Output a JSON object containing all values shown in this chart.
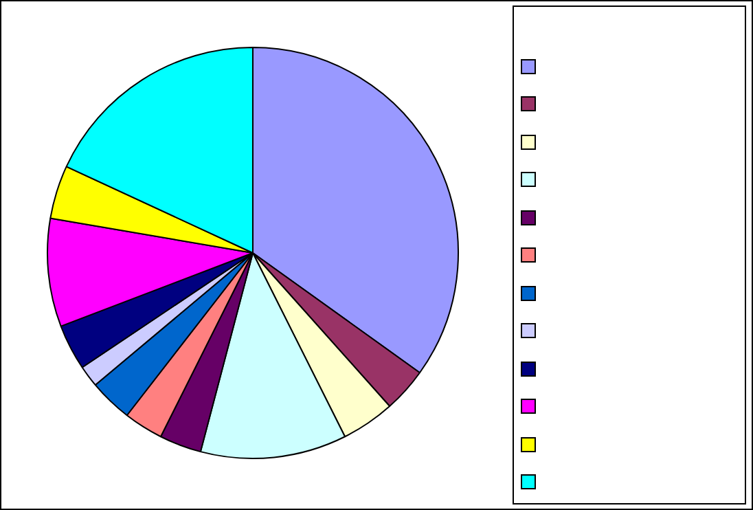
{
  "chart_data": {
    "type": "pie",
    "categories": [
      null,
      null,
      null,
      null,
      null,
      null,
      null,
      null,
      null,
      null,
      null,
      null
    ],
    "values": [
      34.9,
      3.5,
      4.2,
      11.5,
      3.3,
      3.1,
      3.4,
      1.7,
      3.6,
      8.5,
      4.2,
      18.1
    ],
    "colors": [
      "#9999ff",
      "#993366",
      "#ffffcc",
      "#ccffff",
      "#660066",
      "#ff8080",
      "#0066cc",
      "#ccccff",
      "#000080",
      "#ff00ff",
      "#ffff00",
      "#00ffff"
    ]
  }
}
